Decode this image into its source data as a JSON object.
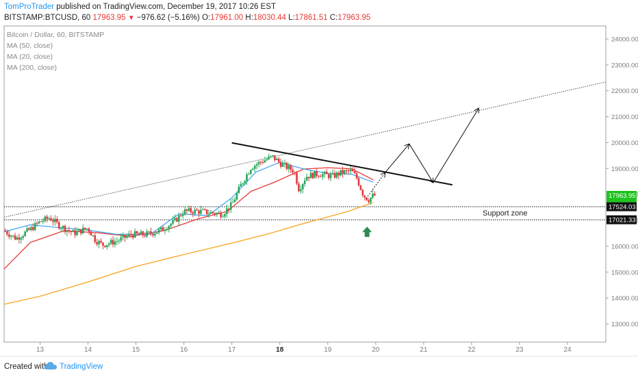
{
  "header": {
    "author": "TomProTrader",
    "published_text": " published on TradingView.com, December 19, 2017 10:26 EST",
    "symbol": "BITSTAMP:BTCUSD, 60",
    "last": "17963.95",
    "change": "−976.62 (−5.16%)",
    "o_label": "O:",
    "o_val": "17961.00",
    "h_label": "H:",
    "h_val": "18030.44",
    "l_label": "L:",
    "l_val": "17861.51",
    "c_label": "C:",
    "c_val": "17963.95"
  },
  "legend": {
    "title": "Bitcoin / Dollar, 60, BITSTAMP",
    "ma50": "MA (50, close)",
    "ma20": "MA (20, close)",
    "ma200": "MA (200, close)"
  },
  "annotations": {
    "support_zone": "Support zone"
  },
  "footer": {
    "created_with": "Created with",
    "brand": "TradingView"
  },
  "chart_data": {
    "type": "candlestick",
    "y_axis": {
      "ticks": [
        13000,
        14000,
        15000,
        16000,
        17000,
        18000,
        19000,
        20000,
        21000,
        22000,
        23000,
        24000
      ],
      "tick_labels": [
        "13000.00",
        "14000.00",
        "15000.00",
        "16000.00",
        "17000.00",
        "18000.00",
        "19000.00",
        "20000.00",
        "21000.00",
        "22000.00",
        "23000.00",
        "24000.00"
      ],
      "range": [
        12300,
        24500
      ]
    },
    "x_axis": {
      "ticks": [
        13,
        14,
        15,
        16,
        17,
        18,
        19,
        20,
        21,
        22,
        23,
        24
      ],
      "tick_labels": [
        "13",
        "14",
        "15",
        "16",
        "17",
        "18",
        "19",
        "20",
        "21",
        "22",
        "23",
        "24"
      ],
      "bold_tick": "18",
      "range": [
        12.25,
        24.8
      ]
    },
    "price_labels": [
      {
        "value": 17963.95,
        "text": "17963.95",
        "color": "#1ec31e"
      },
      {
        "value": 17620,
        "text": "34:01",
        "color": "#1ec31e"
      },
      {
        "value": 17524.03,
        "text": "17524.03",
        "color": "#111111"
      },
      {
        "value": 17021.33,
        "text": "17021.33",
        "color": "#111111"
      }
    ],
    "support_lines": [
      17524.03,
      17021.33
    ],
    "upper_trendline": {
      "from": [
        12.25,
        17120
      ],
      "to": [
        24.8,
        22340
      ]
    },
    "descending_trendline": {
      "from": [
        17.0,
        19990
      ],
      "to": [
        19.75,
        18990
      ],
      "to2": [
        21.6,
        18370
      ]
    },
    "projection_path": [
      [
        19.8,
        17840
      ],
      [
        20.2,
        18850
      ],
      [
        20.7,
        19950
      ],
      [
        21.2,
        18450
      ],
      [
        22.15,
        21330
      ]
    ],
    "ma50": [
      [
        12.25,
        15120
      ],
      [
        12.8,
        16150
      ],
      [
        13.5,
        16600
      ],
      [
        14.2,
        16520
      ],
      [
        14.9,
        16380
      ],
      [
        15.6,
        16610
      ],
      [
        16.3,
        17060
      ],
      [
        16.9,
        17340
      ],
      [
        17.4,
        18120
      ],
      [
        17.9,
        18480
      ],
      [
        18.5,
        18980
      ],
      [
        19.0,
        19030
      ],
      [
        19.5,
        18990
      ],
      [
        19.95,
        18560
      ]
    ],
    "ma20": [
      [
        12.25,
        16560
      ],
      [
        12.8,
        16830
      ],
      [
        13.4,
        16720
      ],
      [
        14.0,
        16620
      ],
      [
        14.6,
        16460
      ],
      [
        15.3,
        16460
      ],
      [
        15.9,
        17250
      ],
      [
        16.5,
        17180
      ],
      [
        17.0,
        17870
      ],
      [
        17.5,
        18860
      ],
      [
        18.0,
        19240
      ],
      [
        18.5,
        18980
      ],
      [
        19.0,
        18810
      ],
      [
        19.5,
        18780
      ],
      [
        19.95,
        18470
      ]
    ],
    "ma200": [
      [
        12.25,
        13760
      ],
      [
        13.0,
        14070
      ],
      [
        14.0,
        14620
      ],
      [
        15.0,
        15220
      ],
      [
        16.0,
        15680
      ],
      [
        17.0,
        16120
      ],
      [
        17.8,
        16500
      ],
      [
        18.5,
        16880
      ],
      [
        19.4,
        17330
      ],
      [
        19.95,
        17690
      ]
    ],
    "candles_anchor_path": [
      [
        12.25,
        16600
      ],
      [
        12.5,
        16300
      ],
      [
        12.8,
        16650
      ],
      [
        13.0,
        16950
      ],
      [
        13.2,
        17100
      ],
      [
        13.4,
        16800
      ],
      [
        13.7,
        16500
      ],
      [
        14.0,
        16700
      ],
      [
        14.15,
        16250
      ],
      [
        14.3,
        16050
      ],
      [
        14.6,
        16200
      ],
      [
        14.9,
        16450
      ],
      [
        15.2,
        16450
      ],
      [
        15.5,
        16600
      ],
      [
        15.8,
        16950
      ],
      [
        16.0,
        17350
      ],
      [
        16.3,
        17350
      ],
      [
        16.5,
        17300
      ],
      [
        16.8,
        17250
      ],
      [
        17.0,
        17600
      ],
      [
        17.2,
        18400
      ],
      [
        17.4,
        19050
      ],
      [
        17.65,
        19300
      ],
      [
        17.85,
        19450
      ],
      [
        18.05,
        19150
      ],
      [
        18.3,
        18900
      ],
      [
        18.4,
        18200
      ],
      [
        18.55,
        18700
      ],
      [
        18.8,
        18800
      ],
      [
        19.1,
        18700
      ],
      [
        19.3,
        18850
      ],
      [
        19.5,
        18900
      ],
      [
        19.6,
        18650
      ],
      [
        19.75,
        17950
      ],
      [
        19.85,
        17800
      ],
      [
        19.95,
        17960
      ]
    ]
  }
}
